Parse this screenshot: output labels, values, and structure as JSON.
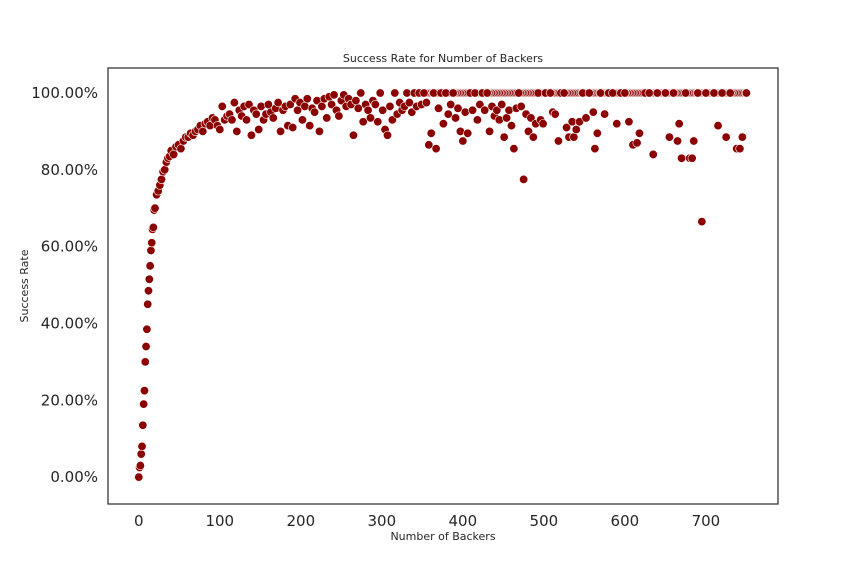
{
  "chart_data": {
    "type": "scatter",
    "title": "Success Rate for Number of Backers",
    "xlabel": "Number of Backers",
    "ylabel": "Success Rate",
    "xlim": [
      -38,
      789
    ],
    "ylim": [
      -0.07,
      1.065
    ],
    "x_ticks": [
      0,
      100,
      200,
      300,
      400,
      500,
      600,
      700
    ],
    "y_ticks": [
      0.0,
      0.2,
      0.4,
      0.6,
      0.8,
      1.0
    ],
    "x_tick_labels": [
      "0",
      "100",
      "200",
      "300",
      "400",
      "500",
      "600",
      "700"
    ],
    "y_tick_labels": [
      "0.00%",
      "20.00%",
      "40.00%",
      "60.00%",
      "80.00%",
      "100.00%"
    ],
    "grid": false,
    "marker_color": "#8b0000",
    "series": [
      {
        "points": [
          [
            0,
            0.0
          ],
          [
            1,
            0.025
          ],
          [
            2,
            0.03
          ],
          [
            3,
            0.06
          ],
          [
            4,
            0.08
          ],
          [
            5,
            0.135
          ],
          [
            6,
            0.19
          ],
          [
            7,
            0.225
          ],
          [
            8,
            0.3
          ],
          [
            9,
            0.34
          ],
          [
            10,
            0.385
          ],
          [
            11,
            0.45
          ],
          [
            12,
            0.485
          ],
          [
            13,
            0.515
          ],
          [
            14,
            0.55
          ],
          [
            15,
            0.59
          ],
          [
            16,
            0.61
          ],
          [
            17,
            0.645
          ],
          [
            18,
            0.65
          ],
          [
            19,
            0.695
          ],
          [
            20,
            0.7
          ],
          [
            22,
            0.735
          ],
          [
            24,
            0.745
          ],
          [
            26,
            0.76
          ],
          [
            28,
            0.775
          ],
          [
            30,
            0.795
          ],
          [
            32,
            0.8
          ],
          [
            34,
            0.82
          ],
          [
            36,
            0.83
          ],
          [
            38,
            0.835
          ],
          [
            40,
            0.85
          ],
          [
            43,
            0.84
          ],
          [
            46,
            0.86
          ],
          [
            49,
            0.865
          ],
          [
            52,
            0.855
          ],
          [
            55,
            0.875
          ],
          [
            58,
            0.885
          ],
          [
            61,
            0.885
          ],
          [
            64,
            0.895
          ],
          [
            67,
            0.89
          ],
          [
            70,
            0.9
          ],
          [
            73,
            0.905
          ],
          [
            76,
            0.915
          ],
          [
            79,
            0.9
          ],
          [
            82,
            0.92
          ],
          [
            85,
            0.925
          ],
          [
            88,
            0.915
          ],
          [
            91,
            0.935
          ],
          [
            94,
            0.93
          ],
          [
            97,
            0.915
          ],
          [
            100,
            0.905
          ],
          [
            103,
            0.965
          ],
          [
            106,
            0.93
          ],
          [
            109,
            0.94
          ],
          [
            112,
            0.945
          ],
          [
            115,
            0.93
          ],
          [
            118,
            0.975
          ],
          [
            121,
            0.9
          ],
          [
            124,
            0.955
          ],
          [
            127,
            0.94
          ],
          [
            130,
            0.965
          ],
          [
            133,
            0.93
          ],
          [
            136,
            0.97
          ],
          [
            139,
            0.89
          ],
          [
            142,
            0.955
          ],
          [
            145,
            0.945
          ],
          [
            148,
            0.905
          ],
          [
            151,
            0.965
          ],
          [
            154,
            0.93
          ],
          [
            157,
            0.945
          ],
          [
            160,
            0.97
          ],
          [
            163,
            0.95
          ],
          [
            166,
            0.935
          ],
          [
            169,
            0.96
          ],
          [
            172,
            0.975
          ],
          [
            175,
            0.9
          ],
          [
            178,
            0.955
          ],
          [
            181,
            0.965
          ],
          [
            184,
            0.915
          ],
          [
            187,
            0.97
          ],
          [
            190,
            0.91
          ],
          [
            193,
            0.985
          ],
          [
            196,
            0.955
          ],
          [
            199,
            0.975
          ],
          [
            202,
            0.93
          ],
          [
            205,
            0.965
          ],
          [
            208,
            0.985
          ],
          [
            211,
            0.915
          ],
          [
            214,
            0.96
          ],
          [
            217,
            0.95
          ],
          [
            220,
            0.98
          ],
          [
            223,
            0.9
          ],
          [
            226,
            0.965
          ],
          [
            229,
            0.985
          ],
          [
            232,
            0.935
          ],
          [
            235,
            0.99
          ],
          [
            238,
            0.97
          ],
          [
            241,
            0.995
          ],
          [
            244,
            0.955
          ],
          [
            247,
            0.94
          ],
          [
            250,
            0.98
          ],
          [
            253,
            0.995
          ],
          [
            256,
            0.965
          ],
          [
            259,
            0.985
          ],
          [
            262,
            0.97
          ],
          [
            265,
            0.89
          ],
          [
            268,
            0.98
          ],
          [
            271,
            0.96
          ],
          [
            274,
            1.0
          ],
          [
            277,
            0.925
          ],
          [
            280,
            0.97
          ],
          [
            283,
            0.955
          ],
          [
            286,
            0.935
          ],
          [
            289,
            0.98
          ],
          [
            292,
            0.97
          ],
          [
            295,
            0.925
          ],
          [
            298,
            1.0
          ],
          [
            301,
            0.955
          ],
          [
            304,
            0.905
          ],
          [
            307,
            0.89
          ],
          [
            310,
            0.965
          ],
          [
            313,
            0.93
          ],
          [
            316,
            1.0
          ],
          [
            319,
            0.945
          ],
          [
            322,
            0.975
          ],
          [
            325,
            0.955
          ],
          [
            328,
            0.965
          ],
          [
            331,
            1.0
          ],
          [
            334,
            0.975
          ],
          [
            337,
            0.95
          ],
          [
            340,
            1.0
          ],
          [
            343,
            0.965
          ],
          [
            346,
            1.0
          ],
          [
            349,
            0.97
          ],
          [
            352,
            1.0
          ],
          [
            355,
            0.975
          ],
          [
            358,
            0.865
          ],
          [
            361,
            0.895
          ],
          [
            364,
            1.0
          ],
          [
            367,
            0.855
          ],
          [
            370,
            0.96
          ],
          [
            373,
            1.0
          ],
          [
            376,
            0.92
          ],
          [
            379,
            1.0
          ],
          [
            382,
            0.945
          ],
          [
            385,
            0.97
          ],
          [
            388,
            1.0
          ],
          [
            391,
            0.935
          ],
          [
            394,
            0.96
          ],
          [
            397,
            0.9
          ],
          [
            400,
            0.875
          ],
          [
            403,
            0.95
          ],
          [
            406,
            0.895
          ],
          [
            409,
            1.0
          ],
          [
            412,
            0.955
          ],
          [
            415,
            1.0
          ],
          [
            418,
            0.93
          ],
          [
            421,
            0.97
          ],
          [
            424,
            1.0
          ],
          [
            427,
            0.955
          ],
          [
            430,
            1.0
          ],
          [
            433,
            0.9
          ],
          [
            436,
            0.965
          ],
          [
            439,
            0.94
          ],
          [
            442,
            0.955
          ],
          [
            445,
            0.93
          ],
          [
            448,
            0.97
          ],
          [
            451,
            0.885
          ],
          [
            454,
            0.935
          ],
          [
            457,
            0.955
          ],
          [
            460,
            0.915
          ],
          [
            463,
            0.855
          ],
          [
            466,
            0.96
          ],
          [
            469,
            1.0
          ],
          [
            472,
            0.965
          ],
          [
            475,
            0.775
          ],
          [
            478,
            0.945
          ],
          [
            481,
            0.9
          ],
          [
            484,
            0.935
          ],
          [
            487,
            0.885
          ],
          [
            490,
            0.92
          ],
          [
            493,
            1.0
          ],
          [
            496,
            0.93
          ],
          [
            499,
            0.92
          ],
          [
            502,
            1.0
          ],
          [
            508,
            1.0
          ],
          [
            511,
            0.95
          ],
          [
            514,
            0.945
          ],
          [
            518,
            0.875
          ],
          [
            521,
            1.0
          ],
          [
            525,
            1.0
          ],
          [
            528,
            0.91
          ],
          [
            531,
            0.885
          ],
          [
            535,
            0.925
          ],
          [
            537,
            0.885
          ],
          [
            540,
            0.905
          ],
          [
            544,
            0.925
          ],
          [
            548,
            1.0
          ],
          [
            552,
            0.935
          ],
          [
            556,
            1.0
          ],
          [
            561,
            0.95
          ],
          [
            563,
            0.855
          ],
          [
            566,
            0.895
          ],
          [
            570,
            1.0
          ],
          [
            575,
            0.945
          ],
          [
            580,
            1.0
          ],
          [
            585,
            1.0
          ],
          [
            590,
            0.92
          ],
          [
            595,
            1.0
          ],
          [
            600,
            1.0
          ],
          [
            605,
            0.925
          ],
          [
            610,
            0.865
          ],
          [
            615,
            0.87
          ],
          [
            618,
            0.895
          ],
          [
            625,
            1.0
          ],
          [
            630,
            1.0
          ],
          [
            635,
            0.84
          ],
          [
            640,
            1.0
          ],
          [
            650,
            1.0
          ],
          [
            655,
            0.885
          ],
          [
            660,
            1.0
          ],
          [
            665,
            0.875
          ],
          [
            667,
            0.92
          ],
          [
            670,
            0.83
          ],
          [
            675,
            1.0
          ],
          [
            680,
            0.83
          ],
          [
            683,
            0.83
          ],
          [
            685,
            0.875
          ],
          [
            690,
            1.0
          ],
          [
            695,
            0.665
          ],
          [
            700,
            1.0
          ],
          [
            710,
            1.0
          ],
          [
            715,
            0.915
          ],
          [
            720,
            1.0
          ],
          [
            725,
            0.885
          ],
          [
            730,
            1.0
          ],
          [
            738,
            0.855
          ],
          [
            742,
            0.855
          ],
          [
            745,
            0.885
          ],
          [
            750,
            1.0
          ]
        ],
        "dense_full_rate_x_range": [
          355,
          750
        ]
      }
    ]
  }
}
